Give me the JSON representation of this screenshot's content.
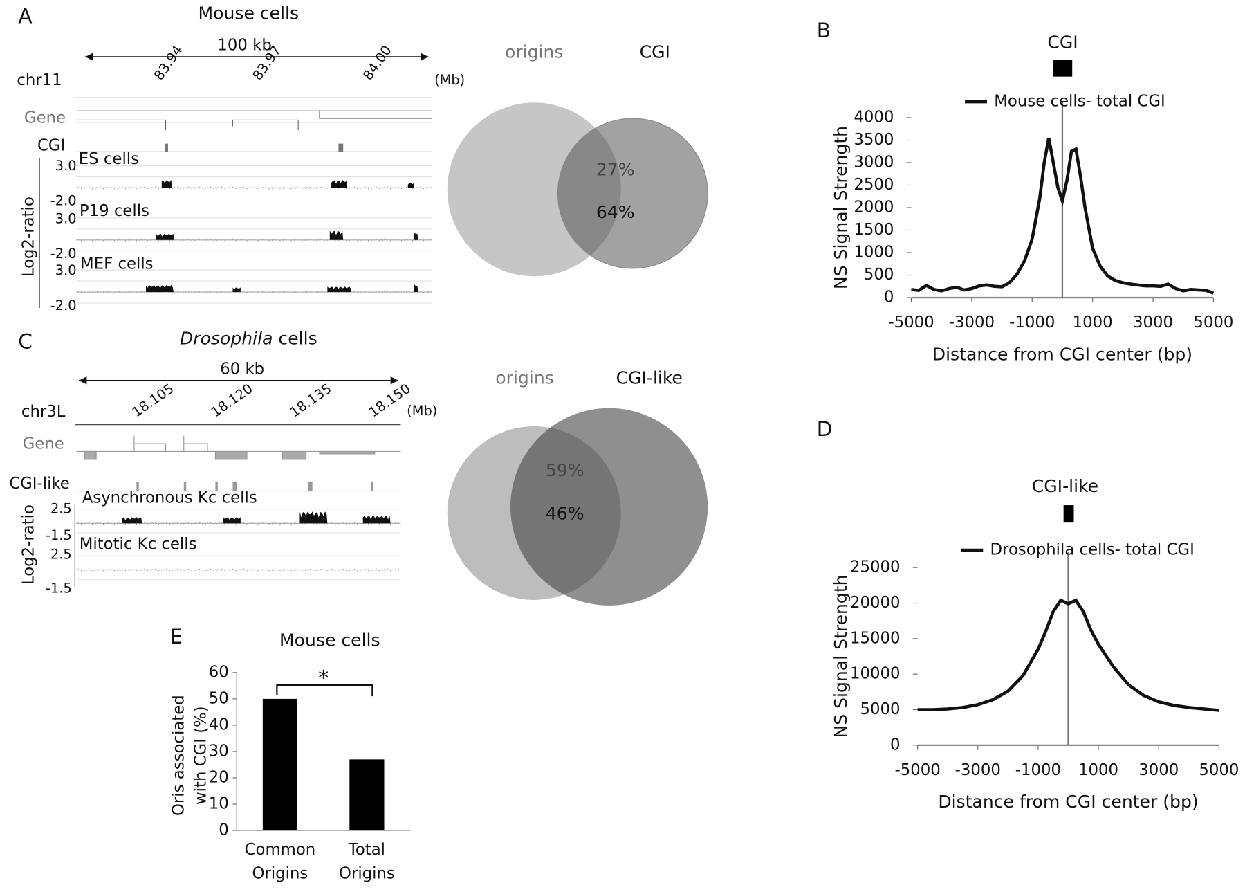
{
  "panels": {
    "A": {
      "label": "A",
      "title": "Mouse cells",
      "scale": "100 kb",
      "chrom": "chr11",
      "ticks": [
        "83.94",
        "83.97",
        "84.00"
      ],
      "unit": "(Mb)",
      "tracks": [
        "Gene",
        "CGI"
      ],
      "samples": [
        "ES cells",
        "P19 cells",
        "MEF cells"
      ],
      "axis_label": "Log2-ratio",
      "range": [
        "3.0",
        "-2.0"
      ]
    },
    "venn_A": {
      "sets": [
        "origins",
        "CGI"
      ],
      "overlap": [
        "27%",
        "64%"
      ]
    },
    "C": {
      "label": "C",
      "title_italic": "Drosophila",
      "title": "cells",
      "scale": "60 kb",
      "chrom": "chr3L",
      "ticks": [
        "18.105",
        "18.120",
        "18.135",
        "18.150"
      ],
      "unit": "(Mb)",
      "tracks": [
        "Gene",
        "CGI-like"
      ],
      "samples": [
        "Asynchronous Kc cells",
        "Mitotic Kc cells"
      ],
      "axis_label": "Log2-ratio",
      "range": [
        "2.5",
        "-1.5"
      ]
    },
    "venn_C": {
      "sets": [
        "origins",
        "CGI-like"
      ],
      "overlap": [
        "59%",
        "46%"
      ]
    }
  },
  "chart_data": [
    {
      "type": "line",
      "panel_label": "B",
      "title": "CGI",
      "x_label": "Distance from CGI center (bp)",
      "y_label": "NS Signal Strength",
      "x": [
        -5000,
        -4750,
        -4500,
        -4250,
        -4000,
        -3750,
        -3500,
        -3250,
        -3000,
        -2750,
        -2500,
        -2250,
        -2000,
        -1750,
        -1500,
        -1250,
        -1000,
        -750,
        -600,
        -450,
        -300,
        -150,
        0,
        150,
        300,
        450,
        600,
        750,
        1000,
        1250,
        1500,
        1750,
        2000,
        2250,
        2500,
        2750,
        3000,
        3250,
        3500,
        3750,
        4000,
        4250,
        4500,
        4750,
        5000
      ],
      "series": [
        {
          "name": "Mouse cells- total CGI",
          "color": "#111111",
          "values": [
            180,
            160,
            270,
            180,
            150,
            200,
            230,
            170,
            200,
            260,
            280,
            250,
            240,
            330,
            520,
            820,
            1300,
            2200,
            3000,
            3550,
            3000,
            2450,
            2150,
            2600,
            3250,
            3300,
            2700,
            2000,
            1100,
            700,
            480,
            380,
            330,
            300,
            280,
            260,
            260,
            250,
            300,
            200,
            150,
            180,
            170,
            160,
            100
          ]
        }
      ],
      "xlim": [
        -5000,
        5000
      ],
      "ylim": [
        0,
        4000
      ],
      "xticks": [
        -5000,
        -3000,
        -1000,
        1000,
        3000,
        5000
      ],
      "yticks": [
        0,
        500,
        1000,
        1500,
        2000,
        2500,
        3000,
        3500,
        4000
      ],
      "vline": 0
    },
    {
      "type": "line",
      "panel_label": "D",
      "title": "CGI-like",
      "x_label": "Distance from CGI center (bp)",
      "y_label": "NS Signal Strength",
      "x": [
        -5000,
        -4500,
        -4000,
        -3500,
        -3000,
        -2500,
        -2000,
        -1500,
        -1000,
        -750,
        -500,
        -250,
        0,
        250,
        500,
        750,
        1000,
        1500,
        2000,
        2500,
        3000,
        3500,
        4000,
        4500,
        5000
      ],
      "series": [
        {
          "name": "Drosophila cells- total CGI",
          "color": "#111111",
          "values": [
            5000,
            5000,
            5100,
            5300,
            5700,
            6400,
            7600,
            9800,
            13500,
            16000,
            18800,
            20400,
            19900,
            20400,
            18800,
            16200,
            14200,
            11000,
            8500,
            7000,
            6100,
            5600,
            5300,
            5100,
            4900
          ]
        }
      ],
      "xlim": [
        -5000,
        5000
      ],
      "ylim": [
        0,
        25000
      ],
      "xticks": [
        -5000,
        -3000,
        -1000,
        1000,
        3000,
        5000
      ],
      "yticks": [
        0,
        5000,
        10000,
        15000,
        20000,
        25000
      ],
      "vline": 0
    },
    {
      "type": "bar",
      "panel_label": "E",
      "title": "Mouse cells",
      "y_label": [
        "Oris associated",
        "with CGI (%)"
      ],
      "categories": [
        [
          "Common",
          "Origins"
        ],
        [
          "Total",
          "Origins"
        ]
      ],
      "values": [
        50,
        27
      ],
      "color": "#000000",
      "ylim": [
        0,
        60
      ],
      "yticks": [
        0,
        10,
        20,
        30,
        40,
        50,
        60
      ],
      "annotation": "*"
    }
  ]
}
